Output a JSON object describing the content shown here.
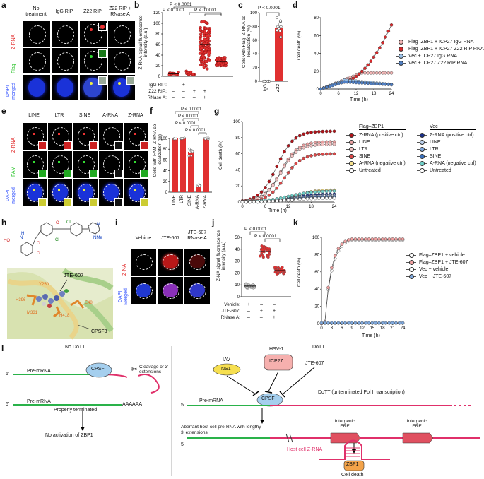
{
  "panels": {
    "a": "a",
    "b": "b",
    "c": "c",
    "d": "d",
    "e": "e",
    "f": "f",
    "g": "g",
    "h": "h",
    "i": "i",
    "j": "j",
    "k": "k",
    "l": "l"
  },
  "a": {
    "cols": [
      "No treatment",
      "IgG RIP",
      "Z22 RIP",
      "Z22 RIP + RNase A"
    ],
    "rows": [
      "Z-RNA",
      "Flag",
      "DAPI merged"
    ]
  },
  "b": {
    "ylabel": "Z-RNA signal fluorescence intensity (a.u.)",
    "yticks": [
      "0",
      "20",
      "40",
      "60",
      "80",
      "100",
      "120"
    ],
    "p1": "P < 0.0001",
    "p2": "P < 0.0001",
    "p3": "P < 0.0001",
    "rows": [
      {
        "label": "IgG RIP:",
        "vals": [
          "–",
          "+",
          "–",
          "–"
        ]
      },
      {
        "label": "Z22 RIP:",
        "vals": [
          "–",
          "–",
          "+",
          "+"
        ]
      },
      {
        "label": "RNase A:",
        "vals": [
          "–",
          "–",
          "–",
          "+"
        ]
      }
    ],
    "means": [
      5,
      6,
      60,
      28
    ]
  },
  "c": {
    "ylabel": "Cells with Flag–Z-RNA co-localization (%)",
    "yticks": [
      "0",
      "20",
      "40",
      "60",
      "80",
      "100"
    ],
    "p": "P < 0.0001",
    "cats": [
      "IgG",
      "Z22"
    ],
    "values": [
      0,
      78
    ]
  },
  "d": {
    "ylabel": "Cell death (%)",
    "xlabel": "Time (h)",
    "yticks": [
      "0",
      "20",
      "40",
      "60",
      "80"
    ],
    "xticks": [
      "0",
      "6",
      "12",
      "18",
      "24"
    ],
    "legend": [
      "Flag–ZBP1 + ICP27 IgG RNA",
      "Flag–ZBP1 + ICP27 Z22 RIP RNA",
      "Vec + ICP27 IgG RNA",
      "Vec + ICP27 Z22 RIP RNA"
    ],
    "colors": [
      "#f4b6b6",
      "#d9282a",
      "#9cc3ea",
      "#4f7fc4"
    ]
  },
  "e": {
    "cols": [
      "LINE",
      "LTR",
      "SINE",
      "A-RNA",
      "Z-RNA"
    ],
    "rows": [
      "Z-RNA",
      "FAM",
      "DAPI merged"
    ]
  },
  "f": {
    "ylabel": "Cells with FAM–Z-RNA co-localization (%)",
    "yticks": [
      "0",
      "20",
      "40",
      "60",
      "80",
      "100"
    ],
    "cats": [
      "LINE",
      "LTR",
      "SINE",
      "A-RNA",
      "Z-RNA"
    ],
    "values": [
      100,
      100,
      75,
      10,
      100
    ],
    "p": "P < 0.0001"
  },
  "g": {
    "ylabel": "Cell death (%)",
    "xlabel": "Time (h)",
    "yticks": [
      "0",
      "20",
      "40",
      "60",
      "80",
      "100"
    ],
    "xticks": [
      "0",
      "6",
      "12",
      "18",
      "24"
    ],
    "legend_title_1": "Flag–ZBP1",
    "legend_title_2": "Vec",
    "legend1": [
      "Z-RNA (positive ctrl)",
      "LINE",
      "LTR",
      "SINE",
      "A-RNA (negative ctrl)",
      "Untreated"
    ],
    "legend2": [
      "Z-RNA (positive ctrl)",
      "LINE",
      "LTR",
      "SINE",
      "A-RNA (negative ctrl)",
      "Untreated"
    ],
    "colors1": [
      "#b0141a",
      "#e8a0a0",
      "#f2c3c3",
      "#d94848",
      "#f5e08a",
      "#ffffff"
    ],
    "colors2": [
      "#1a2f8a",
      "#bcd2ee",
      "#7ea7dc",
      "#3a6fba",
      "#6fcfc8",
      "#ffffff"
    ]
  },
  "h": {
    "drug": "JTE-607",
    "protein": "CPSF3",
    "residues": [
      "Y250",
      "H396",
      "M331",
      "H418",
      "E48"
    ],
    "atoms": [
      "HO",
      "Cl",
      "Cl",
      "N",
      "NMe",
      "O",
      "O",
      "N",
      "H",
      "O"
    ]
  },
  "i": {
    "cols": [
      "Vehicle",
      "JTE-607",
      "JTE-607 RNase A"
    ],
    "rows": [
      "Z-NA",
      "DAPI Merged"
    ]
  },
  "j": {
    "ylabel": "Z-NA signal fluorescence intensity (a.u.)",
    "yticks": [
      "0",
      "10",
      "20",
      "30",
      "40",
      "50"
    ],
    "p1": "P < 0.0001",
    "p2": "P < 0.0001",
    "rows": [
      {
        "label": "Vehicle:",
        "vals": [
          "+",
          "–",
          "–"
        ]
      },
      {
        "label": "JTE-607:",
        "vals": [
          "–",
          "+",
          "+"
        ]
      },
      {
        "label": "RNase A:",
        "vals": [
          "–",
          "–",
          "+"
        ]
      }
    ],
    "means": [
      9,
      38,
      22
    ]
  },
  "k": {
    "ylabel": "Cell death (%)",
    "xlabel": "Time (h)",
    "yticks": [
      "0",
      "20",
      "40",
      "60",
      "80",
      "100"
    ],
    "xticks": [
      "0",
      "3",
      "6",
      "9",
      "12",
      "15",
      "18",
      "21",
      "24"
    ],
    "legend": [
      "Flag–ZBP1 + vehicle",
      "Flag–ZBP1 + JTE-607",
      "Vec + vehicle",
      "Vec + JTE-607"
    ],
    "colors": [
      "#ffffff",
      "#f0a0a0",
      "#ffffff",
      "#7fa8dc"
    ]
  },
  "l": {
    "left_title": "No DoTT",
    "right_title": "DoTT",
    "premrna": "Pre-mRNA",
    "cpsf": "CPSF",
    "cleavage": "Cleavage of 3′ extensions",
    "terminated": "Properly terminated",
    "polya": "AAAAAA",
    "noact": "No activation of ZBP1",
    "five": "5′",
    "iav": "IAV",
    "ns1": "NS1",
    "hsv": "HSV-1",
    "icp27": "ICP27",
    "jte": "JTE-607",
    "dott": "DoTT (unterminated Pol II transcription)",
    "aberrant": "Aberrant host cell pre-RNA with lengthy 3′ extensions",
    "ere1": "Intergenic ERE",
    "ere2": "Intergenic ERE",
    "zrna": "Host cell Z-RNA",
    "zbp1": "ZBP1",
    "death": "Cell death"
  }
}
